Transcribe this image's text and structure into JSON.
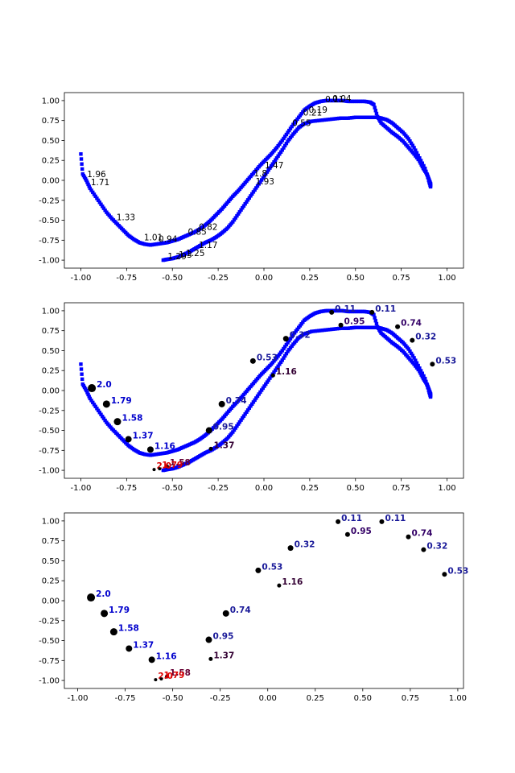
{
  "chart_data": [
    {
      "type": "scatter",
      "title": "",
      "xlabel": "",
      "ylabel": "",
      "xlim": [
        -1.09,
        1.09
      ],
      "ylim": [
        -1.1,
        1.1
      ],
      "xticks": [
        "-1.00",
        "-0.75",
        "-0.50",
        "-0.25",
        "0.00",
        "0.25",
        "0.50",
        "0.75",
        "1.00"
      ],
      "xtick_values": [
        -1,
        -0.75,
        -0.5,
        -0.25,
        0,
        0.25,
        0.5,
        0.75,
        1
      ],
      "yticks": [
        "-1.00",
        "-0.75",
        "-0.50",
        "-0.25",
        "0.00",
        "0.25",
        "0.50",
        "0.75",
        "1.00"
      ],
      "ytick_values": [
        -1,
        -0.75,
        -0.5,
        -0.25,
        0,
        0.25,
        0.5,
        0.75,
        1
      ],
      "colors": {
        "trajectory": "#0000ff",
        "annotation": "#000000"
      },
      "trajectory": {
        "name": "",
        "x": [
          -1.0,
          -0.99,
          -0.97,
          -0.95,
          -0.92,
          -0.89,
          -0.86,
          -0.83,
          -0.8,
          -0.77,
          -0.74,
          -0.71,
          -0.68,
          -0.65,
          -0.62,
          -0.59,
          -0.56,
          -0.53,
          -0.5,
          -0.47,
          -0.44,
          -0.41,
          -0.38,
          -0.35,
          -0.32,
          -0.29,
          -0.26,
          -0.23,
          -0.2,
          -0.17,
          -0.14,
          -0.11,
          -0.08,
          -0.05,
          -0.02,
          0.01,
          0.04,
          0.07,
          0.1,
          0.13,
          0.16,
          0.19,
          0.22,
          0.25,
          0.28,
          0.31,
          0.34,
          0.37,
          0.4,
          0.43,
          0.46,
          0.49,
          0.52,
          0.55,
          0.58,
          0.6,
          0.62,
          0.64,
          0.67,
          0.7,
          0.73,
          0.76,
          0.79,
          0.82,
          0.85,
          0.87,
          0.89,
          0.9,
          0.91,
          0.91,
          0.9,
          0.88,
          0.85,
          0.82,
          0.79,
          0.76,
          0.73,
          0.7,
          0.67,
          0.64,
          0.62,
          0.6,
          0.57,
          0.54,
          0.5,
          0.46,
          0.42,
          0.38,
          0.34,
          0.3,
          0.26,
          0.22,
          0.19,
          0.16,
          0.13,
          0.1,
          0.07,
          0.04,
          0.01,
          -0.02,
          -0.05,
          -0.08,
          -0.11,
          -0.14,
          -0.17,
          -0.2,
          -0.23,
          -0.26,
          -0.29,
          -0.32,
          -0.35,
          -0.38,
          -0.41,
          -0.44,
          -0.47,
          -0.5,
          -0.53,
          -0.55
        ],
        "y": [
          0.33,
          0.08,
          0.0,
          -0.1,
          -0.2,
          -0.3,
          -0.4,
          -0.48,
          -0.55,
          -0.62,
          -0.69,
          -0.74,
          -0.78,
          -0.8,
          -0.81,
          -0.8,
          -0.79,
          -0.78,
          -0.76,
          -0.74,
          -0.71,
          -0.68,
          -0.65,
          -0.61,
          -0.56,
          -0.5,
          -0.43,
          -0.36,
          -0.28,
          -0.2,
          -0.13,
          -0.05,
          0.03,
          0.11,
          0.19,
          0.26,
          0.33,
          0.41,
          0.5,
          0.6,
          0.7,
          0.79,
          0.88,
          0.93,
          0.97,
          0.99,
          1.0,
          1.0,
          1.0,
          1.0,
          0.99,
          0.99,
          0.99,
          0.99,
          0.98,
          0.95,
          0.8,
          0.72,
          0.66,
          0.6,
          0.55,
          0.49,
          0.41,
          0.33,
          0.24,
          0.15,
          0.08,
          0.02,
          -0.04,
          -0.08,
          0.0,
          0.15,
          0.28,
          0.41,
          0.52,
          0.6,
          0.66,
          0.72,
          0.76,
          0.78,
          0.79,
          0.79,
          0.79,
          0.79,
          0.79,
          0.78,
          0.78,
          0.77,
          0.76,
          0.75,
          0.74,
          0.71,
          0.66,
          0.58,
          0.49,
          0.38,
          0.28,
          0.18,
          0.08,
          -0.02,
          -0.12,
          -0.22,
          -0.32,
          -0.42,
          -0.52,
          -0.6,
          -0.66,
          -0.71,
          -0.75,
          -0.78,
          -0.82,
          -0.86,
          -0.9,
          -0.93,
          -0.96,
          -0.98,
          -0.99,
          -1.0
        ]
      },
      "points": [
        {
          "x": -0.97,
          "y": 0.03,
          "label": "1.96",
          "r": 0,
          "label_color": "#000000",
          "bold": false
        },
        {
          "x": -0.95,
          "y": -0.07,
          "label": "1.71",
          "r": 0,
          "label_color": "#000000",
          "bold": false
        },
        {
          "x": -0.81,
          "y": -0.51,
          "label": "1.33",
          "r": 0,
          "label_color": "#000000",
          "bold": false
        },
        {
          "x": -0.66,
          "y": -0.76,
          "label": "1.01",
          "r": 0,
          "label_color": "#000000",
          "bold": false
        },
        {
          "x": -0.58,
          "y": -0.78,
          "label": "0.94",
          "r": 0,
          "label_color": "#000000",
          "bold": false
        },
        {
          "x": -0.42,
          "y": -0.69,
          "label": "0.85",
          "r": 0,
          "label_color": "#000000",
          "bold": false
        },
        {
          "x": -0.36,
          "y": -0.63,
          "label": "0.82",
          "r": 0,
          "label_color": "#000000",
          "bold": false
        },
        {
          "x": -0.53,
          "y": -1.0,
          "label": "1.29",
          "r": 0,
          "label_color": "#000000",
          "bold": false
        },
        {
          "x": -0.47,
          "y": -0.98,
          "label": "1.3",
          "r": 0,
          "label_color": "#000000",
          "bold": false
        },
        {
          "x": -0.43,
          "y": -0.96,
          "label": "1.25",
          "r": 0,
          "label_color": "#000000",
          "bold": false
        },
        {
          "x": -0.36,
          "y": -0.86,
          "label": "1.17",
          "r": 0,
          "label_color": "#000000",
          "bold": false
        },
        {
          "x": 0.0,
          "y": 0.14,
          "label": "1.47",
          "r": 0,
          "label_color": "#000000",
          "bold": false
        },
        {
          "x": -0.06,
          "y": 0.04,
          "label": "1.8",
          "r": 0,
          "label_color": "#000000",
          "bold": false
        },
        {
          "x": -0.05,
          "y": -0.06,
          "label": "1.93",
          "r": 0,
          "label_color": "#000000",
          "bold": false
        },
        {
          "x": 0.15,
          "y": 0.67,
          "label": "0.55",
          "r": 0,
          "label_color": "#000000",
          "bold": false
        },
        {
          "x": 0.21,
          "y": 0.8,
          "label": "0.21",
          "r": 0,
          "label_color": "#000000",
          "bold": false
        },
        {
          "x": 0.24,
          "y": 0.84,
          "label": "0.19",
          "r": 0,
          "label_color": "#000000",
          "bold": false
        },
        {
          "x": 0.33,
          "y": 0.97,
          "label": "0.11",
          "r": 0,
          "label_color": "#000000",
          "bold": false
        },
        {
          "x": 0.37,
          "y": 0.98,
          "label": "0.04",
          "r": 0,
          "label_color": "#000000",
          "bold": false
        }
      ]
    },
    {
      "type": "scatter",
      "title": "",
      "xlabel": "",
      "ylabel": "",
      "xlim": [
        -1.09,
        1.09
      ],
      "ylim": [
        -1.1,
        1.1
      ],
      "xticks": [
        "-1.00",
        "-0.75",
        "-0.50",
        "-0.25",
        "0.00",
        "0.25",
        "0.50",
        "0.75",
        "1.00"
      ],
      "xtick_values": [
        -1,
        -0.75,
        -0.5,
        -0.25,
        0,
        0.25,
        0.5,
        0.75,
        1
      ],
      "yticks": [
        "-1.00",
        "-0.75",
        "-0.50",
        "-0.25",
        "0.00",
        "0.25",
        "0.50",
        "0.75",
        "1.00"
      ],
      "ytick_values": [
        -1,
        -0.75,
        -0.5,
        -0.25,
        0,
        0.25,
        0.5,
        0.75,
        1
      ],
      "colors": {
        "trajectory": "#0000ff",
        "marker": "#000000"
      },
      "trajectory": {
        "name": "",
        "same_as_panel": 0
      },
      "points": [
        {
          "x": -0.94,
          "y": 0.03,
          "label": "2.0",
          "r": 5,
          "label_color": "#0000cc",
          "bold": true
        },
        {
          "x": -0.86,
          "y": -0.17,
          "label": "1.79",
          "r": 4.5,
          "label_color": "#0000cc",
          "bold": true
        },
        {
          "x": -0.8,
          "y": -0.39,
          "label": "1.58",
          "r": 4.5,
          "label_color": "#0000cc",
          "bold": true
        },
        {
          "x": -0.74,
          "y": -0.61,
          "label": "1.37",
          "r": 4,
          "label_color": "#0000cc",
          "bold": true
        },
        {
          "x": -0.62,
          "y": -0.74,
          "label": "1.16",
          "r": 4,
          "label_color": "#0000cc",
          "bold": true
        },
        {
          "x": -0.3,
          "y": -0.5,
          "label": "0.95",
          "r": 4,
          "label_color": "#1a1a99",
          "bold": true
        },
        {
          "x": -0.23,
          "y": -0.17,
          "label": "0.74",
          "r": 4,
          "label_color": "#1a1a99",
          "bold": true
        },
        {
          "x": -0.06,
          "y": 0.37,
          "label": "0.53",
          "r": 3.5,
          "label_color": "#1a1a99",
          "bold": true
        },
        {
          "x": 0.12,
          "y": 0.65,
          "label": "0.32",
          "r": 3.5,
          "label_color": "#1a1a99",
          "bold": true
        },
        {
          "x": 0.37,
          "y": 0.98,
          "label": "0.11",
          "r": 3,
          "label_color": "#1a1a99",
          "bold": true
        },
        {
          "x": 0.59,
          "y": 0.98,
          "label": "0.11",
          "r": 3,
          "label_color": "#1a1a99",
          "bold": true
        },
        {
          "x": 0.42,
          "y": 0.82,
          "label": "0.95",
          "r": 3,
          "label_color": "#330066",
          "bold": true
        },
        {
          "x": 0.73,
          "y": 0.8,
          "label": "0.74",
          "r": 3,
          "label_color": "#330066",
          "bold": true
        },
        {
          "x": 0.81,
          "y": 0.63,
          "label": "0.32",
          "r": 3,
          "label_color": "#1a1a99",
          "bold": true
        },
        {
          "x": 0.92,
          "y": 0.33,
          "label": "0.53",
          "r": 3,
          "label_color": "#1a1a99",
          "bold": true
        },
        {
          "x": 0.05,
          "y": 0.19,
          "label": "1.16",
          "r": 2.5,
          "label_color": "#330033",
          "bold": true
        },
        {
          "x": -0.29,
          "y": -0.73,
          "label": "1.37",
          "r": 2.5,
          "label_color": "#330033",
          "bold": true
        },
        {
          "x": -0.53,
          "y": -0.95,
          "label": "1.58",
          "r": 2.5,
          "label_color": "#660033",
          "bold": true
        },
        {
          "x": -0.6,
          "y": -0.99,
          "label": "2.0",
          "r": 2,
          "label_color": "#dd0000",
          "bold": true
        },
        {
          "x": -0.57,
          "y": -0.98,
          "label": "1.79",
          "r": 2,
          "label_color": "#dd0000",
          "bold": true
        }
      ]
    },
    {
      "type": "scatter",
      "title": "",
      "xlabel": "",
      "ylabel": "",
      "xlim": [
        -1.07,
        1.03
      ],
      "ylim": [
        -1.1,
        1.1
      ],
      "xticks": [
        "-1.00",
        "-0.75",
        "-0.50",
        "-0.25",
        "0.00",
        "0.25",
        "0.50",
        "0.75",
        "1.00"
      ],
      "xtick_values": [
        -1,
        -0.75,
        -0.5,
        -0.25,
        0,
        0.25,
        0.5,
        0.75,
        1
      ],
      "yticks": [
        "-1.00",
        "-0.75",
        "-0.50",
        "-0.25",
        "0.00",
        "0.25",
        "0.50",
        "0.75",
        "1.00"
      ],
      "ytick_values": [
        -1,
        -0.75,
        -0.5,
        -0.25,
        0,
        0.25,
        0.5,
        0.75,
        1
      ],
      "colors": {
        "marker": "#000000"
      },
      "points": [
        {
          "x": -0.93,
          "y": 0.04,
          "label": "2.0",
          "r": 5,
          "label_color": "#0000cc",
          "bold": true
        },
        {
          "x": -0.86,
          "y": -0.16,
          "label": "1.79",
          "r": 4.5,
          "label_color": "#0000cc",
          "bold": true
        },
        {
          "x": -0.81,
          "y": -0.39,
          "label": "1.58",
          "r": 4.5,
          "label_color": "#0000cc",
          "bold": true
        },
        {
          "x": -0.73,
          "y": -0.6,
          "label": "1.37",
          "r": 4,
          "label_color": "#0000cc",
          "bold": true
        },
        {
          "x": -0.61,
          "y": -0.74,
          "label": "1.16",
          "r": 4,
          "label_color": "#0000cc",
          "bold": true
        },
        {
          "x": -0.31,
          "y": -0.49,
          "label": "0.95",
          "r": 4,
          "label_color": "#1a1a99",
          "bold": true
        },
        {
          "x": -0.22,
          "y": -0.16,
          "label": "0.74",
          "r": 4,
          "label_color": "#1a1a99",
          "bold": true
        },
        {
          "x": -0.05,
          "y": 0.38,
          "label": "0.53",
          "r": 3.5,
          "label_color": "#1a1a99",
          "bold": true
        },
        {
          "x": 0.12,
          "y": 0.66,
          "label": "0.32",
          "r": 3.5,
          "label_color": "#1a1a99",
          "bold": true
        },
        {
          "x": 0.37,
          "y": 0.99,
          "label": "0.11",
          "r": 3,
          "label_color": "#1a1a99",
          "bold": true
        },
        {
          "x": 0.6,
          "y": 0.99,
          "label": "0.11",
          "r": 3,
          "label_color": "#1a1a99",
          "bold": true
        },
        {
          "x": 0.42,
          "y": 0.83,
          "label": "0.95",
          "r": 3,
          "label_color": "#330066",
          "bold": true
        },
        {
          "x": 0.74,
          "y": 0.8,
          "label": "0.74",
          "r": 3,
          "label_color": "#330066",
          "bold": true
        },
        {
          "x": 0.82,
          "y": 0.64,
          "label": "0.32",
          "r": 3,
          "label_color": "#1a1a99",
          "bold": true
        },
        {
          "x": 0.93,
          "y": 0.33,
          "label": "0.53",
          "r": 3,
          "label_color": "#1a1a99",
          "bold": true
        },
        {
          "x": 0.06,
          "y": 0.19,
          "label": "1.16",
          "r": 2.5,
          "label_color": "#330033",
          "bold": true
        },
        {
          "x": -0.3,
          "y": -0.73,
          "label": "1.37",
          "r": 2.5,
          "label_color": "#330033",
          "bold": true
        },
        {
          "x": -0.53,
          "y": -0.95,
          "label": "1.58",
          "r": 2.5,
          "label_color": "#660033",
          "bold": true
        },
        {
          "x": -0.59,
          "y": -0.99,
          "label": "2.0",
          "r": 2,
          "label_color": "#dd0000",
          "bold": true
        },
        {
          "x": -0.56,
          "y": -0.98,
          "label": "1.79",
          "r": 2,
          "label_color": "#dd0000",
          "bold": true
        }
      ]
    }
  ]
}
